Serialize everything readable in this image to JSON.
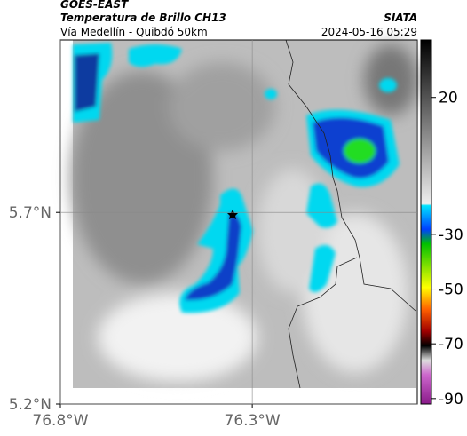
{
  "header": {
    "title": "GOES-EAST",
    "subtitle": "Temperatura de Brillo CH13",
    "location": "Vía Medellín - Quibdó 50km",
    "source": "SIATA",
    "datetime": "2024-05-16 05:29"
  },
  "map": {
    "xlim": [
      -76.8,
      -75.87
    ],
    "ylim": [
      5.2,
      6.15
    ],
    "xticks": [
      {
        "value": -76.8,
        "label": "76.8°W"
      },
      {
        "value": -76.3,
        "label": "76.3°W"
      }
    ],
    "yticks": [
      {
        "value": 5.7,
        "label": "5.7°N"
      },
      {
        "value": 5.2,
        "label": "5.2°N"
      }
    ]
  },
  "colorbar": {
    "lim": [
      41,
      -92
    ],
    "ticks": [
      20,
      -30,
      -50,
      -70,
      -90
    ]
  }
}
